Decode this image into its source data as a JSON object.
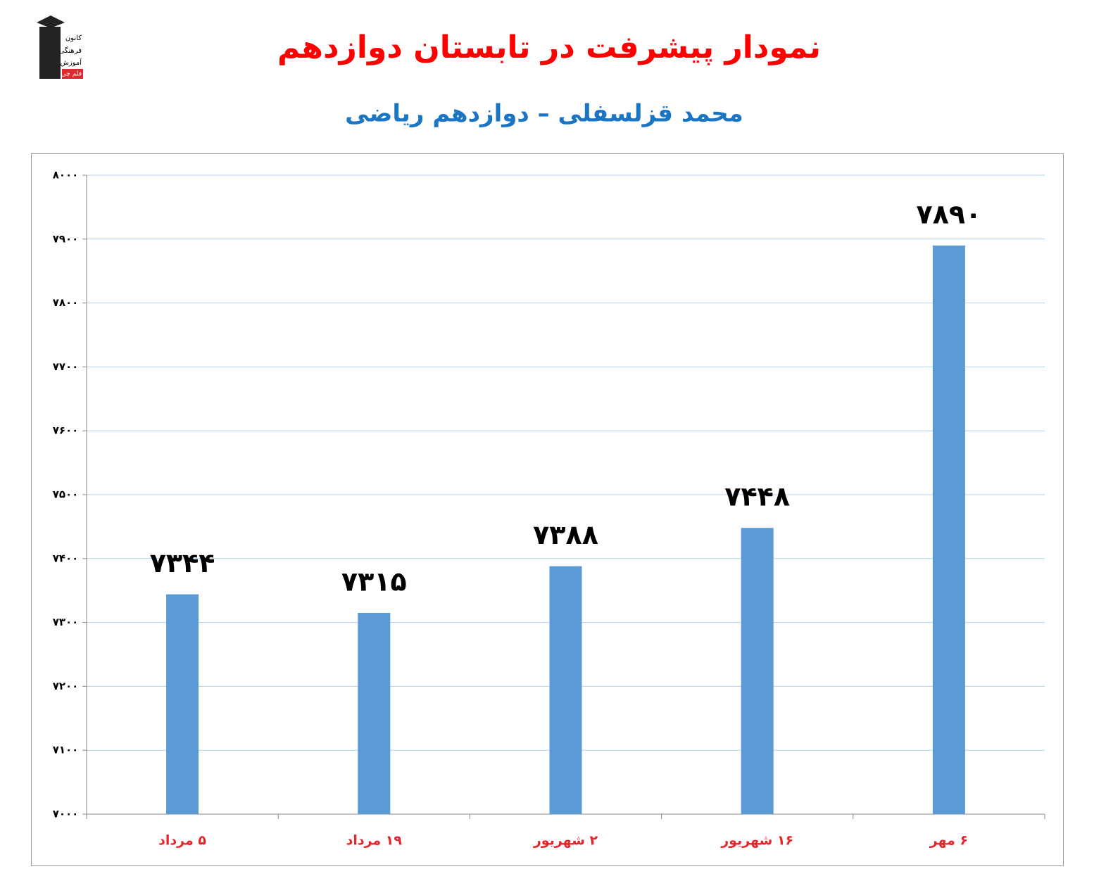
{
  "logo_text": [
    "کانون",
    "فرهنگی",
    "آموزش",
    "قلم چی"
  ],
  "chart_data": {
    "type": "bar",
    "title": "نمودار پیشرفت در تابستان دوازدهم",
    "subtitle": "محمد قزلسفلی – دوازدهم ریاضی",
    "categories": [
      "۵ مرداد",
      "۱۹ مرداد",
      "۲ شهریور",
      "۱۶ شهریور",
      "۶ مهر"
    ],
    "values": [
      7344,
      7315,
      7388,
      7448,
      7890
    ],
    "value_labels": [
      "۷۳۴۴",
      "۷۳۱۵",
      "۷۳۸۸",
      "۷۴۴۸",
      "۷۸۹۰"
    ],
    "color": "#5b9bd5",
    "ylim": [
      7000,
      8000
    ],
    "yticks": [
      {
        "value": 7000,
        "label": "۷۰۰۰"
      },
      {
        "value": 7100,
        "label": "۷۱۰۰"
      },
      {
        "value": 7200,
        "label": "۷۲۰۰"
      },
      {
        "value": 7300,
        "label": "۷۳۰۰"
      },
      {
        "value": 7400,
        "label": "۷۴۰۰"
      },
      {
        "value": 7500,
        "label": "۷۵۰۰"
      },
      {
        "value": 7600,
        "label": "۷۶۰۰"
      },
      {
        "value": 7700,
        "label": "۷۷۰۰"
      },
      {
        "value": 7800,
        "label": "۷۸۰۰"
      },
      {
        "value": 7900,
        "label": "۷۹۰۰"
      },
      {
        "value": 8000,
        "label": "۸۰۰۰"
      }
    ],
    "grid": true
  }
}
